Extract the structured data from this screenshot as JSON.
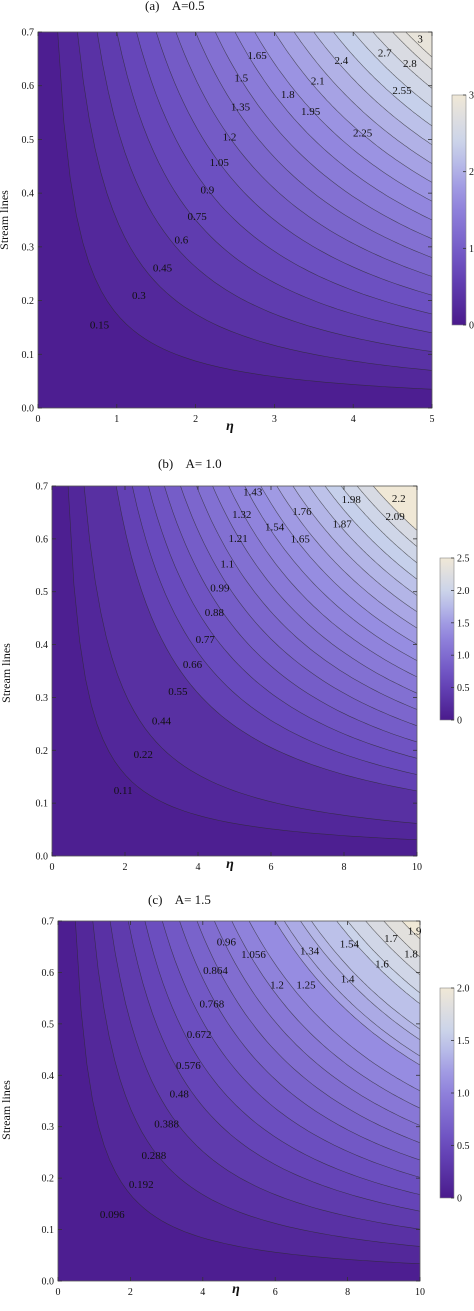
{
  "chart_data": [
    {
      "type": "contour",
      "title": "(a)    A=0.5",
      "xlabel": "η",
      "ylabel": "Stream lines",
      "xlim": [
        0,
        5
      ],
      "ylim": [
        0,
        0.7
      ],
      "x_ticks": [
        "0",
        "1",
        "2",
        "3",
        "4",
        "5"
      ],
      "y_ticks": [
        "0.0",
        "0.1",
        "0.2",
        "0.3",
        "0.4",
        "0.5",
        "0.6",
        "0.7"
      ],
      "colorbar": {
        "range": [
          0,
          3
        ],
        "ticks": [
          "0",
          "1",
          "2",
          "3"
        ]
      },
      "contour_levels": [
        "0.15",
        "0.3",
        "0.45",
        "0.6",
        "0.75",
        "0.9",
        "1.05",
        "1.2",
        "1.35",
        "1.5",
        "1.65",
        "1.8",
        "1.95",
        "2.1",
        "2.25",
        "2.4",
        "2.55",
        "2.7",
        "2.8",
        "3"
      ],
      "labeled_points": [
        {
          "x": 0.78,
          "y": 0.155,
          "label": "0.15"
        },
        {
          "x": 1.28,
          "y": 0.21,
          "label": "0.3"
        },
        {
          "x": 1.58,
          "y": 0.262,
          "label": "0.45"
        },
        {
          "x": 1.82,
          "y": 0.314,
          "label": "0.6"
        },
        {
          "x": 2.02,
          "y": 0.357,
          "label": "0.75"
        },
        {
          "x": 2.15,
          "y": 0.407,
          "label": "0.9"
        },
        {
          "x": 2.3,
          "y": 0.458,
          "label": "1.05"
        },
        {
          "x": 2.43,
          "y": 0.505,
          "label": "1.2"
        },
        {
          "x": 2.57,
          "y": 0.561,
          "label": "1.35"
        },
        {
          "x": 2.58,
          "y": 0.615,
          "label": "1.5"
        },
        {
          "x": 2.78,
          "y": 0.657,
          "label": "1.65"
        },
        {
          "x": 3.17,
          "y": 0.585,
          "label": "1.8"
        },
        {
          "x": 3.46,
          "y": 0.553,
          "label": "1.95"
        },
        {
          "x": 3.55,
          "y": 0.61,
          "label": "2.1"
        },
        {
          "x": 4.12,
          "y": 0.513,
          "label": "2.25"
        },
        {
          "x": 3.85,
          "y": 0.648,
          "label": "2.4"
        },
        {
          "x": 4.62,
          "y": 0.592,
          "label": "2.55"
        },
        {
          "x": 4.4,
          "y": 0.662,
          "label": "2.7"
        },
        {
          "x": 4.72,
          "y": 0.642,
          "label": "2.8"
        },
        {
          "x": 4.85,
          "y": 0.688,
          "label": "3"
        }
      ]
    },
    {
      "type": "contour",
      "title": "(b)    A= 1.0",
      "xlabel": "η",
      "ylabel": "Stream lines",
      "xlim": [
        0,
        10
      ],
      "ylim": [
        0,
        0.7
      ],
      "x_ticks": [
        "0",
        "2",
        "4",
        "6",
        "8",
        "10"
      ],
      "y_ticks": [
        "0.0",
        "0.1",
        "0.2",
        "0.3",
        "0.4",
        "0.5",
        "0.6",
        "0.7"
      ],
      "colorbar": {
        "range": [
          0,
          2.5
        ],
        "ticks": [
          "0",
          "0.5",
          "1.0",
          "1.5",
          "2.0",
          "2.5"
        ]
      },
      "contour_levels": [
        "0.11",
        "0.22",
        "0.44",
        "0.55",
        "0.66",
        "0.77",
        "0.88",
        "0.99",
        "1.1",
        "1.21",
        "1.32",
        "1.43",
        "1.54",
        "1.65",
        "1.76",
        "1.87",
        "1.98",
        "2.09",
        "2.2"
      ],
      "labeled_points": [
        {
          "x": 1.95,
          "y": 0.125,
          "label": "0.11"
        },
        {
          "x": 2.5,
          "y": 0.193,
          "label": "0.22"
        },
        {
          "x": 3.0,
          "y": 0.256,
          "label": "0.44"
        },
        {
          "x": 3.45,
          "y": 0.312,
          "label": "0.55"
        },
        {
          "x": 3.85,
          "y": 0.363,
          "label": "0.66"
        },
        {
          "x": 4.2,
          "y": 0.411,
          "label": "0.77"
        },
        {
          "x": 4.45,
          "y": 0.462,
          "label": "0.88"
        },
        {
          "x": 4.6,
          "y": 0.508,
          "label": "0.99"
        },
        {
          "x": 4.8,
          "y": 0.553,
          "label": "1.1"
        },
        {
          "x": 5.1,
          "y": 0.602,
          "label": "1.21"
        },
        {
          "x": 5.2,
          "y": 0.647,
          "label": "1.32"
        },
        {
          "x": 5.5,
          "y": 0.69,
          "label": "1.43"
        },
        {
          "x": 6.1,
          "y": 0.623,
          "label": "1.54"
        },
        {
          "x": 6.8,
          "y": 0.601,
          "label": "1.65"
        },
        {
          "x": 6.85,
          "y": 0.653,
          "label": "1.76"
        },
        {
          "x": 7.95,
          "y": 0.629,
          "label": "1.87"
        },
        {
          "x": 8.2,
          "y": 0.675,
          "label": "1.98"
        },
        {
          "x": 9.4,
          "y": 0.643,
          "label": "2.09"
        },
        {
          "x": 9.5,
          "y": 0.677,
          "label": "2.2"
        }
      ]
    },
    {
      "type": "contour",
      "title": "(c)    A= 1.5",
      "xlabel": "η",
      "ylabel": "Stream lines",
      "xlim": [
        0,
        10
      ],
      "ylim": [
        0,
        0.7
      ],
      "x_ticks": [
        "0",
        "2",
        "4",
        "6",
        "8",
        "10"
      ],
      "y_ticks": [
        "0.0",
        "0.1",
        "0.2",
        "0.3",
        "0.4",
        "0.5",
        "0.6",
        "0.7"
      ],
      "colorbar": {
        "range": [
          0,
          2.0
        ],
        "ticks": [
          "0",
          "0.5",
          "1.0",
          "1.5",
          "2.0"
        ]
      },
      "contour_levels": [
        "0.096",
        "0.192",
        "0.288",
        "0.388",
        "0.48",
        "0.576",
        "0.672",
        "0.768",
        "0.864",
        "0.96",
        "1.056",
        "1.2",
        "1.25",
        "1.34",
        "1.4",
        "1.54",
        "1.6",
        "1.7",
        "1.8",
        "1.9"
      ],
      "labeled_points": [
        {
          "x": 1.5,
          "y": 0.13,
          "label": "0.096"
        },
        {
          "x": 2.3,
          "y": 0.189,
          "label": "0.192"
        },
        {
          "x": 2.65,
          "y": 0.245,
          "label": "0.288"
        },
        {
          "x": 3.0,
          "y": 0.306,
          "label": "0.388"
        },
        {
          "x": 3.35,
          "y": 0.365,
          "label": "0.48"
        },
        {
          "x": 3.6,
          "y": 0.42,
          "label": "0.576"
        },
        {
          "x": 3.9,
          "y": 0.48,
          "label": "0.672"
        },
        {
          "x": 4.25,
          "y": 0.54,
          "label": "0.768"
        },
        {
          "x": 4.35,
          "y": 0.605,
          "label": "0.864"
        },
        {
          "x": 4.65,
          "y": 0.66,
          "label": "0.96"
        },
        {
          "x": 5.4,
          "y": 0.636,
          "label": "1.056"
        },
        {
          "x": 6.05,
          "y": 0.577,
          "label": "1.2"
        },
        {
          "x": 6.85,
          "y": 0.577,
          "label": "1.25"
        },
        {
          "x": 6.95,
          "y": 0.643,
          "label": "1.34"
        },
        {
          "x": 8.0,
          "y": 0.588,
          "label": "1.4"
        },
        {
          "x": 8.05,
          "y": 0.656,
          "label": "1.54"
        },
        {
          "x": 8.95,
          "y": 0.617,
          "label": "1.6"
        },
        {
          "x": 9.2,
          "y": 0.667,
          "label": "1.7"
        },
        {
          "x": 9.75,
          "y": 0.637,
          "label": "1.8"
        },
        {
          "x": 9.85,
          "y": 0.682,
          "label": "1.9"
        }
      ]
    }
  ]
}
